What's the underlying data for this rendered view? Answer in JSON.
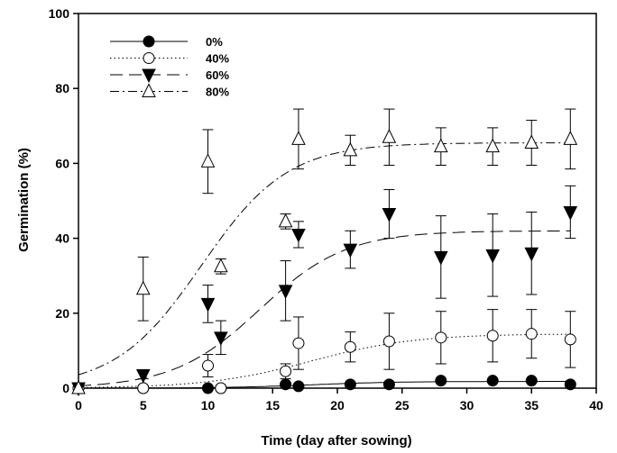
{
  "chart_data": {
    "type": "scatter",
    "title": "",
    "xlabel": "Time (day after sowing)",
    "ylabel": "Germination (%)",
    "xlim": [
      0,
      40
    ],
    "ylim": [
      0,
      100
    ],
    "xticks": [
      0,
      5,
      10,
      15,
      20,
      25,
      30,
      35,
      40
    ],
    "yticks": [
      0,
      20,
      40,
      60,
      80,
      100
    ],
    "grid": false,
    "legend_position": "top-left",
    "series": [
      {
        "name": "0%",
        "marker": "filled-circle",
        "line_style": "solid",
        "points": [
          {
            "x": 0,
            "y": 0,
            "err": 0
          },
          {
            "x": 5,
            "y": 0,
            "err": 0
          },
          {
            "x": 10,
            "y": 0,
            "err": 0
          },
          {
            "x": 11,
            "y": 0,
            "err": 0
          },
          {
            "x": 16,
            "y": 1,
            "err": 0
          },
          {
            "x": 17,
            "y": 0.5,
            "err": 0
          },
          {
            "x": 21,
            "y": 1,
            "err": 0
          },
          {
            "x": 24,
            "y": 1,
            "err": 0
          },
          {
            "x": 28,
            "y": 2,
            "err": 0
          },
          {
            "x": 32,
            "y": 2,
            "err": 0
          },
          {
            "x": 35,
            "y": 2,
            "err": 0
          },
          {
            "x": 38,
            "y": 1,
            "err": 0
          }
        ],
        "fit": {
          "max": 1.8,
          "mid": 18,
          "slope": 0.3
        }
      },
      {
        "name": "40%",
        "marker": "open-circle",
        "line_style": "dotted",
        "points": [
          {
            "x": 0,
            "y": 0,
            "err": 0
          },
          {
            "x": 5,
            "y": 0,
            "err": 0
          },
          {
            "x": 10,
            "y": 6,
            "err": 3
          },
          {
            "x": 11,
            "y": 0,
            "err": 0
          },
          {
            "x": 16,
            "y": 4.5,
            "err": 2
          },
          {
            "x": 17,
            "y": 12,
            "err": 7
          },
          {
            "x": 21,
            "y": 11,
            "err": 4
          },
          {
            "x": 24,
            "y": 12.5,
            "err": 7.5
          },
          {
            "x": 28,
            "y": 13.5,
            "err": 7
          },
          {
            "x": 32,
            "y": 14,
            "err": 7
          },
          {
            "x": 35,
            "y": 14.5,
            "err": 6.5
          },
          {
            "x": 38,
            "y": 13,
            "err": 7.5
          }
        ],
        "fit": {
          "max": 14.5,
          "mid": 18,
          "slope": 0.25
        }
      },
      {
        "name": "60%",
        "marker": "filled-down-triangle",
        "line_style": "dashed",
        "points": [
          {
            "x": 0,
            "y": 0,
            "err": 0
          },
          {
            "x": 5,
            "y": 3.5,
            "err": 1
          },
          {
            "x": 10,
            "y": 22.5,
            "err": 5
          },
          {
            "x": 11,
            "y": 13.5,
            "err": 4.5
          },
          {
            "x": 16,
            "y": 26,
            "err": 8
          },
          {
            "x": 17,
            "y": 41,
            "err": 3.5
          },
          {
            "x": 21,
            "y": 37,
            "err": 5
          },
          {
            "x": 24,
            "y": 46.5,
            "err": 6.5
          },
          {
            "x": 28,
            "y": 35,
            "err": 11
          },
          {
            "x": 32,
            "y": 35.5,
            "err": 11
          },
          {
            "x": 35,
            "y": 36,
            "err": 11
          },
          {
            "x": 38,
            "y": 47,
            "err": 7
          }
        ],
        "fit": {
          "max": 42,
          "mid": 14,
          "slope": 0.3
        }
      },
      {
        "name": "80%",
        "marker": "open-up-triangle",
        "line_style": "dash-dot",
        "points": [
          {
            "x": 0,
            "y": 0,
            "err": 0
          },
          {
            "x": 5,
            "y": 26.5,
            "err": 8.5
          },
          {
            "x": 10,
            "y": 60.5,
            "err": 8.5
          },
          {
            "x": 11,
            "y": 32.5,
            "err": 2
          },
          {
            "x": 16,
            "y": 44.5,
            "err": 2
          },
          {
            "x": 17,
            "y": 66.5,
            "err": 8
          },
          {
            "x": 21,
            "y": 63.5,
            "err": 4
          },
          {
            "x": 24,
            "y": 67,
            "err": 7.5
          },
          {
            "x": 28,
            "y": 64.5,
            "err": 5
          },
          {
            "x": 32,
            "y": 64.5,
            "err": 5
          },
          {
            "x": 35,
            "y": 65.5,
            "err": 6
          },
          {
            "x": 38,
            "y": 66.5,
            "err": 8
          }
        ],
        "fit": {
          "max": 65.5,
          "mid": 9.5,
          "slope": 0.3
        }
      }
    ]
  }
}
